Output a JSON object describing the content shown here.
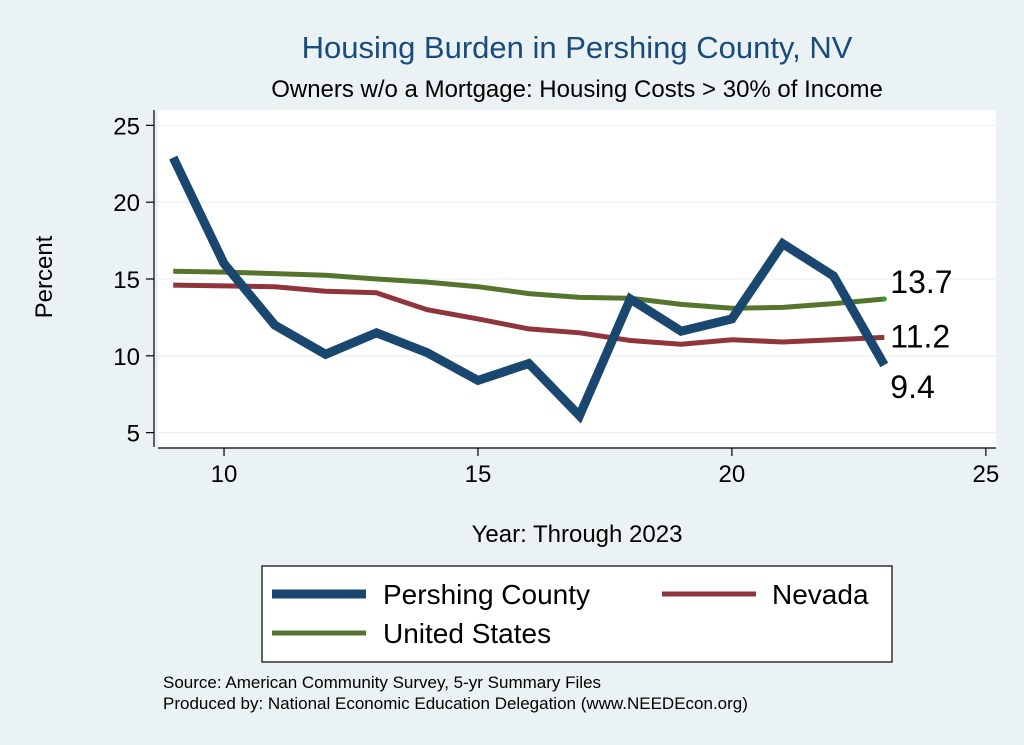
{
  "colors": {
    "background": "#eaf2f3",
    "plot_background": "#ffffff",
    "grid": "#eaf2f3",
    "title": "#1a4b7d",
    "pershing": "#1a476f",
    "nevada": "#90353b",
    "us": "#55752f",
    "end_marker": "#2ca02c"
  },
  "chart_data": {
    "type": "line",
    "title": "Housing Burden in Pershing County, NV",
    "subtitle": "Owners w/o a Mortgage: Housing Costs > 30% of Income",
    "xlabel": "Year: Through 2023",
    "ylabel": "Percent",
    "xlim": [
      8.7,
      25.2
    ],
    "ylim": [
      4.0,
      26.0
    ],
    "x_ticks": [
      10,
      15,
      20,
      25
    ],
    "y_ticks": [
      5,
      10,
      15,
      20,
      25
    ],
    "x_tick_labels": [
      "10",
      "15",
      "20",
      "25"
    ],
    "y_tick_labels": [
      "5",
      "10",
      "15",
      "20",
      "25"
    ],
    "grid": true,
    "legend_position": "bottom",
    "series": [
      {
        "key": "pershing",
        "name": "Pershing County",
        "x": [
          9,
          10,
          11,
          12,
          13,
          14,
          15,
          16,
          17,
          18,
          19,
          20,
          21,
          22,
          23
        ],
        "values": [
          22.9,
          16.0,
          12.0,
          10.1,
          11.5,
          10.2,
          8.4,
          9.5,
          6.1,
          13.7,
          11.6,
          12.4,
          17.3,
          15.2,
          9.4
        ],
        "end_label": "9.4"
      },
      {
        "key": "nevada",
        "name": "Nevada",
        "x": [
          9,
          10,
          11,
          12,
          13,
          14,
          15,
          16,
          17,
          18,
          19,
          20,
          21,
          22,
          23
        ],
        "values": [
          14.6,
          14.55,
          14.5,
          14.2,
          14.1,
          13.0,
          12.4,
          11.75,
          11.5,
          11.0,
          10.75,
          11.05,
          10.9,
          11.05,
          11.2
        ],
        "end_label": "11.2"
      },
      {
        "key": "us",
        "name": "United States",
        "x": [
          9,
          10,
          11,
          12,
          13,
          14,
          15,
          16,
          17,
          18,
          19,
          20,
          21,
          22,
          23
        ],
        "values": [
          15.5,
          15.45,
          15.35,
          15.25,
          15.0,
          14.8,
          14.5,
          14.05,
          13.8,
          13.75,
          13.35,
          13.1,
          13.15,
          13.4,
          13.7
        ],
        "end_label": "13.7"
      }
    ]
  },
  "source": {
    "line1": "Source: American Community Survey, 5-yr Summary Files",
    "line2": "Produced by: National Economic Education Delegation (www.NEEDEcon.org)"
  }
}
